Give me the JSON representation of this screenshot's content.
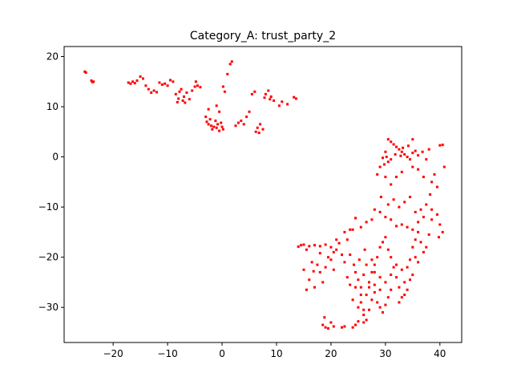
{
  "chart_data": {
    "type": "scatter",
    "title": "Category_A: trust_party_2",
    "xlabel": "",
    "ylabel": "",
    "xlim": [
      -29,
      44
    ],
    "ylim": [
      -37,
      22
    ],
    "xticks": [
      -20,
      -10,
      0,
      10,
      20,
      30,
      40
    ],
    "yticks": [
      -30,
      -20,
      -10,
      0,
      10,
      20
    ],
    "grid": false,
    "marker_color": "#ff0000",
    "series": [
      {
        "points": [
          [
            -25.2,
            17.0
          ],
          [
            -25.0,
            16.8
          ],
          [
            -24.0,
            15.2
          ],
          [
            -23.6,
            15.0
          ],
          [
            -23.8,
            14.9
          ],
          [
            -17.2,
            14.8
          ],
          [
            -16.8,
            14.6
          ],
          [
            -16.4,
            15.0
          ],
          [
            -16.0,
            14.7
          ],
          [
            -15.6,
            15.2
          ],
          [
            -15.0,
            16.0
          ],
          [
            -14.5,
            15.6
          ],
          [
            -14.0,
            14.2
          ],
          [
            -13.5,
            13.5
          ],
          [
            -13.0,
            12.8
          ],
          [
            -12.5,
            13.2
          ],
          [
            -12.0,
            12.9
          ],
          [
            -11.5,
            14.8
          ],
          [
            -11.0,
            14.4
          ],
          [
            -10.5,
            14.6
          ],
          [
            -10.0,
            14.2
          ],
          [
            -9.5,
            15.3
          ],
          [
            -9.0,
            15.0
          ],
          [
            -8.5,
            12.5
          ],
          [
            -8.0,
            11.6
          ],
          [
            -7.8,
            13.0
          ],
          [
            -7.5,
            13.5
          ],
          [
            -7.0,
            12.0
          ],
          [
            -6.5,
            12.8
          ],
          [
            -6.0,
            11.5
          ],
          [
            -5.5,
            13.2
          ],
          [
            -5.0,
            14.0
          ],
          [
            -4.8,
            15.0
          ],
          [
            -4.5,
            14.2
          ],
          [
            -4.0,
            13.9
          ],
          [
            -8.2,
            10.9
          ],
          [
            -7.2,
            11.2
          ],
          [
            -6.8,
            10.8
          ],
          [
            -3.0,
            8.0
          ],
          [
            -2.8,
            7.0
          ],
          [
            -2.5,
            6.5
          ],
          [
            -2.2,
            7.5
          ],
          [
            -2.0,
            6.2
          ],
          [
            -1.8,
            5.5
          ],
          [
            -1.5,
            6.0
          ],
          [
            -1.2,
            7.2
          ],
          [
            -1.0,
            5.8
          ],
          [
            -0.8,
            6.5
          ],
          [
            -0.5,
            5.2
          ],
          [
            -0.2,
            6.8
          ],
          [
            0.0,
            6.0
          ],
          [
            0.2,
            5.5
          ],
          [
            -2.5,
            9.5
          ],
          [
            -1.0,
            10.2
          ],
          [
            -0.5,
            9.0
          ],
          [
            0.2,
            14.0
          ],
          [
            0.5,
            13.0
          ],
          [
            1.0,
            16.5
          ],
          [
            1.5,
            18.5
          ],
          [
            1.8,
            19.0
          ],
          [
            2.5,
            6.2
          ],
          [
            3.0,
            6.8
          ],
          [
            3.5,
            7.2
          ],
          [
            4.0,
            6.5
          ],
          [
            4.5,
            8.0
          ],
          [
            5.0,
            9.0
          ],
          [
            5.5,
            12.5
          ],
          [
            6.0,
            13.0
          ],
          [
            6.2,
            5.0
          ],
          [
            6.5,
            5.8
          ],
          [
            6.8,
            4.8
          ],
          [
            7.0,
            6.5
          ],
          [
            7.5,
            5.5
          ],
          [
            7.8,
            11.8
          ],
          [
            8.0,
            12.5
          ],
          [
            8.5,
            13.2
          ],
          [
            8.8,
            11.5
          ],
          [
            9.0,
            12.0
          ],
          [
            9.5,
            11.2
          ],
          [
            10.5,
            10.2
          ],
          [
            11.0,
            11.0
          ],
          [
            12.0,
            10.5
          ],
          [
            13.2,
            11.9
          ],
          [
            13.6,
            11.6
          ],
          [
            30.5,
            3.5
          ],
          [
            31.0,
            3.0
          ],
          [
            31.5,
            2.5
          ],
          [
            32.0,
            2.0
          ],
          [
            32.5,
            1.5
          ],
          [
            33.0,
            1.0
          ],
          [
            33.5,
            0.5
          ],
          [
            34.0,
            0.0
          ],
          [
            34.5,
            -0.5
          ],
          [
            35.0,
            0.8
          ],
          [
            35.5,
            1.2
          ],
          [
            36.0,
            0.3
          ],
          [
            30.0,
            1.0
          ],
          [
            30.2,
            0.0
          ],
          [
            30.5,
            -1.0
          ],
          [
            31.0,
            -0.5
          ],
          [
            29.8,
            -1.5
          ],
          [
            29.5,
            -0.2
          ],
          [
            31.8,
            0.5
          ],
          [
            32.8,
            0.2
          ],
          [
            33.2,
            1.8
          ],
          [
            34.2,
            2.2
          ],
          [
            35.0,
            3.5
          ],
          [
            36.8,
            1.0
          ],
          [
            37.5,
            -0.5
          ],
          [
            38.0,
            1.5
          ],
          [
            40.0,
            2.3
          ],
          [
            40.5,
            2.4
          ],
          [
            40.8,
            -2.0
          ],
          [
            39.0,
            -3.5
          ],
          [
            38.5,
            -5.0
          ],
          [
            39.5,
            -6.0
          ],
          [
            38.2,
            -7.5
          ],
          [
            37.0,
            -4.0
          ],
          [
            36.0,
            -2.5
          ],
          [
            35.0,
            -2.0
          ],
          [
            33.0,
            -3.0
          ],
          [
            32.0,
            -4.0
          ],
          [
            31.0,
            -5.5
          ],
          [
            30.0,
            -4.0
          ],
          [
            29.0,
            -2.0
          ],
          [
            28.5,
            -3.5
          ],
          [
            29.2,
            -8.0
          ],
          [
            30.5,
            -9.5
          ],
          [
            31.5,
            -8.5
          ],
          [
            32.5,
            -10.0
          ],
          [
            33.5,
            -9.0
          ],
          [
            34.5,
            -8.0
          ],
          [
            35.5,
            -11.0
          ],
          [
            36.5,
            -10.5
          ],
          [
            37.5,
            -9.5
          ],
          [
            38.5,
            -10.5
          ],
          [
            39.5,
            -11.5
          ],
          [
            40.0,
            -13.5
          ],
          [
            40.5,
            -15.0
          ],
          [
            39.8,
            -16.0
          ],
          [
            38.5,
            -12.5
          ],
          [
            37.0,
            -12.0
          ],
          [
            36.0,
            -13.0
          ],
          [
            35.0,
            -14.5
          ],
          [
            34.0,
            -14.0
          ],
          [
            33.0,
            -13.5
          ],
          [
            32.0,
            -13.8
          ],
          [
            31.0,
            -12.5
          ],
          [
            30.0,
            -12.0
          ],
          [
            29.0,
            -11.0
          ],
          [
            28.0,
            -10.5
          ],
          [
            27.5,
            -12.5
          ],
          [
            26.5,
            -13.0
          ],
          [
            25.5,
            -14.0
          ],
          [
            24.5,
            -12.2
          ],
          [
            23.5,
            -14.5
          ],
          [
            22.5,
            -15.0
          ],
          [
            21.0,
            -16.5
          ],
          [
            20.0,
            -18.0
          ],
          [
            19.0,
            -17.5
          ],
          [
            18.0,
            -17.8
          ],
          [
            17.0,
            -17.6
          ],
          [
            16.0,
            -17.8
          ],
          [
            15.0,
            -17.5
          ],
          [
            14.5,
            -17.6
          ],
          [
            14.0,
            -17.9
          ],
          [
            15.5,
            -18.5
          ],
          [
            16.5,
            -21.0
          ],
          [
            15.0,
            -22.5
          ],
          [
            16.0,
            -24.5
          ],
          [
            15.5,
            -26.5
          ],
          [
            17.0,
            -26.0
          ],
          [
            18.0,
            -23.0
          ],
          [
            18.5,
            -25.0
          ],
          [
            19.0,
            -22.0
          ],
          [
            20.0,
            -20.5
          ],
          [
            20.5,
            -22.5
          ],
          [
            21.0,
            -18.5
          ],
          [
            22.0,
            -19.5
          ],
          [
            22.5,
            -21.0
          ],
          [
            23.0,
            -24.0
          ],
          [
            23.5,
            -25.5
          ],
          [
            24.0,
            -28.5
          ],
          [
            24.5,
            -26.0
          ],
          [
            25.0,
            -30.0
          ],
          [
            25.5,
            -29.0
          ],
          [
            26.0,
            -31.5
          ],
          [
            26.5,
            -27.5
          ],
          [
            27.0,
            -25.0
          ],
          [
            27.5,
            -23.0
          ],
          [
            28.0,
            -21.5
          ],
          [
            28.5,
            -20.0
          ],
          [
            29.0,
            -18.0
          ],
          [
            29.5,
            -17.0
          ],
          [
            30.0,
            -16.0
          ],
          [
            30.5,
            -18.5
          ],
          [
            31.0,
            -20.0
          ],
          [
            31.5,
            -22.0
          ],
          [
            32.0,
            -24.0
          ],
          [
            32.5,
            -26.0
          ],
          [
            33.0,
            -28.0
          ],
          [
            33.5,
            -25.0
          ],
          [
            34.0,
            -22.0
          ],
          [
            34.5,
            -20.5
          ],
          [
            35.0,
            -18.0
          ],
          [
            35.5,
            -16.5
          ],
          [
            36.0,
            -15.0
          ],
          [
            36.5,
            -17.0
          ],
          [
            37.0,
            -19.0
          ],
          [
            37.5,
            -18.0
          ],
          [
            38.0,
            -15.5
          ],
          [
            34.5,
            -24.5
          ],
          [
            33.0,
            -22.5
          ],
          [
            32.0,
            -21.5
          ],
          [
            31.0,
            -26.5
          ],
          [
            30.5,
            -28.0
          ],
          [
            30.0,
            -29.5
          ],
          [
            29.5,
            -31.0
          ],
          [
            29.0,
            -30.0
          ],
          [
            28.5,
            -29.0
          ],
          [
            28.0,
            -27.0
          ],
          [
            27.5,
            -28.5
          ],
          [
            27.0,
            -30.5
          ],
          [
            26.5,
            -32.5
          ],
          [
            26.0,
            -33.0
          ],
          [
            25.5,
            -26.0
          ],
          [
            25.0,
            -24.5
          ],
          [
            24.5,
            -23.0
          ],
          [
            27.0,
            -26.0
          ],
          [
            28.0,
            -25.5
          ],
          [
            29.0,
            -26.5
          ],
          [
            30.0,
            -25.0
          ],
          [
            31.0,
            -23.5
          ],
          [
            27.5,
            -20.5
          ],
          [
            28.0,
            -23.0
          ],
          [
            29.0,
            -24.0
          ],
          [
            26.5,
            -21.5
          ],
          [
            26.0,
            -23.5
          ],
          [
            25.5,
            -27.5
          ],
          [
            19.0,
            -34.0
          ],
          [
            18.5,
            -33.5
          ],
          [
            19.5,
            -34.2
          ],
          [
            20.0,
            -33.0
          ],
          [
            20.5,
            -33.8
          ],
          [
            18.8,
            -32.0
          ],
          [
            22.0,
            -34.0
          ],
          [
            22.5,
            -33.8
          ],
          [
            24.0,
            -34.0
          ],
          [
            24.5,
            -33.5
          ],
          [
            25.0,
            -32.8
          ],
          [
            26.0,
            -30.5
          ],
          [
            32.5,
            -29.0
          ],
          [
            33.5,
            -27.5
          ],
          [
            34.0,
            -26.5
          ],
          [
            35.0,
            -23.5
          ],
          [
            36.0,
            -21.0
          ],
          [
            35.5,
            -20.0
          ],
          [
            24.0,
            -14.5
          ],
          [
            23.0,
            -16.5
          ],
          [
            21.5,
            -17.2
          ],
          [
            20.5,
            -19.0
          ],
          [
            19.5,
            -20.0
          ],
          [
            18.0,
            -19.2
          ],
          [
            17.5,
            -21.5
          ],
          [
            16.8,
            -22.8
          ],
          [
            23.5,
            -19.5
          ],
          [
            24.2,
            -21.5
          ],
          [
            25.2,
            -20.5
          ],
          [
            26.2,
            -18.5
          ]
        ]
      }
    ]
  }
}
